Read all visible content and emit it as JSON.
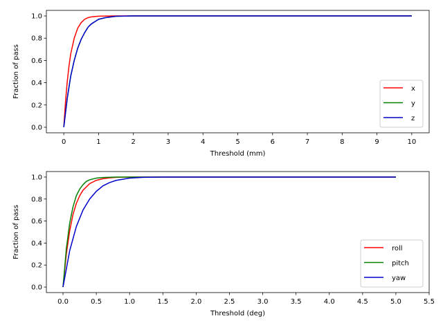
{
  "chart_data": [
    {
      "type": "line",
      "title": "",
      "xlabel": "Threshold (mm)",
      "ylabel": "Fraction of pass",
      "xlim": [
        -0.5,
        10.5
      ],
      "ylim": [
        -0.05,
        1.05
      ],
      "xticks": [
        0,
        1,
        2,
        3,
        4,
        5,
        6,
        7,
        8,
        9,
        10
      ],
      "xtick_labels": [
        "0",
        "1",
        "2",
        "3",
        "4",
        "5",
        "6",
        "7",
        "8",
        "9",
        "10"
      ],
      "yticks": [
        0,
        0.2,
        0.4,
        0.6,
        0.8,
        1.0
      ],
      "ytick_labels": [
        "0.0",
        "0.2",
        "0.4",
        "0.6",
        "0.8",
        "1.0"
      ],
      "grid": false,
      "legend_position": "lower-right",
      "series": [
        {
          "name": "x",
          "color": "#ff0000",
          "x": [
            0,
            0.05,
            0.1,
            0.15,
            0.2,
            0.3,
            0.4,
            0.5,
            0.6,
            0.7,
            0.8,
            1.0,
            1.5,
            2,
            10
          ],
          "y": [
            0,
            0.23,
            0.41,
            0.55,
            0.66,
            0.8,
            0.89,
            0.94,
            0.97,
            0.985,
            0.992,
            0.998,
            1,
            1,
            1
          ]
        },
        {
          "name": "y",
          "color": "#008000",
          "x": [
            0,
            0.1,
            0.2,
            0.3,
            0.4,
            0.5,
            0.6,
            0.7,
            0.8,
            0.9,
            1.0,
            1.2,
            1.5,
            2,
            10
          ],
          "y": [
            0,
            0.26,
            0.46,
            0.6,
            0.71,
            0.79,
            0.85,
            0.9,
            0.93,
            0.95,
            0.97,
            0.985,
            0.997,
            1,
            1
          ]
        },
        {
          "name": "z",
          "color": "#0000cc",
          "x": [
            0,
            0.1,
            0.2,
            0.3,
            0.4,
            0.5,
            0.6,
            0.7,
            0.8,
            0.9,
            1.0,
            1.2,
            1.5,
            2,
            10
          ],
          "y": [
            0,
            0.26,
            0.46,
            0.6,
            0.71,
            0.79,
            0.85,
            0.9,
            0.93,
            0.95,
            0.97,
            0.985,
            0.997,
            1,
            1
          ]
        }
      ]
    },
    {
      "type": "line",
      "title": "",
      "xlabel": "Threshold (deg)",
      "ylabel": "Fraction of pass",
      "xlim": [
        -0.25,
        5.5
      ],
      "ylim": [
        -0.05,
        1.05
      ],
      "xticks": [
        0,
        0.5,
        1,
        1.5,
        2,
        2.5,
        3,
        3.5,
        4,
        4.5,
        5,
        5.5
      ],
      "xtick_labels": [
        "0.0",
        "0.5",
        "1.0",
        "1.5",
        "2.0",
        "2.5",
        "3.0",
        "3.5",
        "4.0",
        "4.5",
        "5.0",
        "5.5"
      ],
      "yticks": [
        0,
        0.2,
        0.4,
        0.6,
        0.8,
        1.0
      ],
      "ytick_labels": [
        "0.0",
        "0.2",
        "0.4",
        "0.6",
        "0.8",
        "1.0"
      ],
      "grid": false,
      "legend_position": "lower-right",
      "series": [
        {
          "name": "roll",
          "color": "#ff0000",
          "x": [
            0,
            0.05,
            0.1,
            0.15,
            0.2,
            0.25,
            0.3,
            0.4,
            0.5,
            0.6,
            0.7,
            0.8,
            1.0,
            1.5,
            5
          ],
          "y": [
            0,
            0.3,
            0.51,
            0.66,
            0.76,
            0.83,
            0.88,
            0.94,
            0.97,
            0.985,
            0.993,
            0.997,
            1,
            1,
            1
          ]
        },
        {
          "name": "pitch",
          "color": "#008000",
          "x": [
            0,
            0.05,
            0.1,
            0.15,
            0.2,
            0.25,
            0.3,
            0.35,
            0.4,
            0.5,
            0.6,
            0.8,
            1.0,
            5
          ],
          "y": [
            0,
            0.35,
            0.58,
            0.73,
            0.83,
            0.89,
            0.93,
            0.96,
            0.975,
            0.99,
            0.996,
            1,
            1,
            1
          ]
        },
        {
          "name": "yaw",
          "color": "#0000cc",
          "x": [
            0,
            0.1,
            0.2,
            0.3,
            0.4,
            0.5,
            0.6,
            0.7,
            0.8,
            0.9,
            1.0,
            1.2,
            1.5,
            2,
            5
          ],
          "y": [
            0,
            0.33,
            0.55,
            0.7,
            0.8,
            0.87,
            0.92,
            0.95,
            0.97,
            0.98,
            0.99,
            0.997,
            1,
            1,
            1
          ]
        }
      ]
    }
  ]
}
